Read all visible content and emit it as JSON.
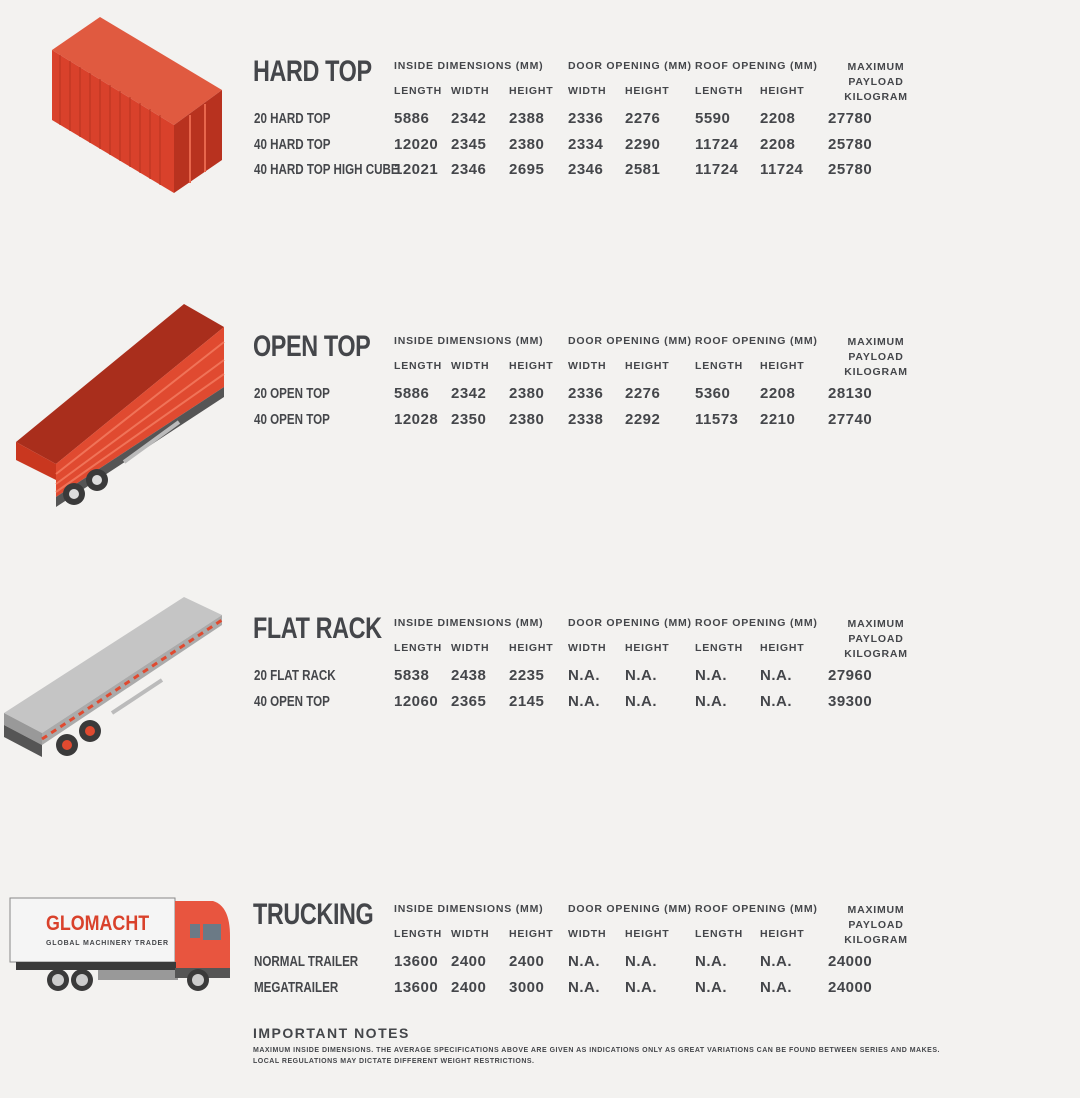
{
  "colors": {
    "text": "#44464a",
    "container_red": "#d9412b",
    "truck_cab": "#e8553f",
    "background": "#f3f2f0"
  },
  "headers": {
    "inside": "INSIDE DIMENSIONS (MM)",
    "door": "DOOR OPENING (MM)",
    "roof": "ROOF OPENING (MM)",
    "payload_1": "MAXIMUM PAYLOAD",
    "payload_2": "KILOGRAM",
    "length": "LENGTH",
    "width": "WIDTH",
    "height": "HEIGHT"
  },
  "sections": [
    {
      "title": "HARD TOP",
      "illustration": "shipping-container",
      "rows": [
        {
          "label": "20 HARD TOP",
          "values": [
            "5886",
            "2342",
            "2388",
            "2336",
            "2276",
            "5590",
            "2208",
            "27780"
          ]
        },
        {
          "label": "40 HARD TOP",
          "values": [
            "12020",
            "2345",
            "2380",
            "2334",
            "2290",
            "11724",
            "2208",
            "25780"
          ]
        },
        {
          "label": "40 HARD TOP HIGH CUBE",
          "values": [
            "12021",
            "2346",
            "2695",
            "2346",
            "2581",
            "11724",
            "11724",
            "25780"
          ]
        }
      ]
    },
    {
      "title": "OPEN TOP",
      "illustration": "open-top-trailer",
      "rows": [
        {
          "label": "20 OPEN TOP",
          "values": [
            "5886",
            "2342",
            "2380",
            "2336",
            "2276",
            "5360",
            "2208",
            "28130"
          ]
        },
        {
          "label": "40 OPEN TOP",
          "values": [
            "12028",
            "2350",
            "2380",
            "2338",
            "2292",
            "11573",
            "2210",
            "27740"
          ]
        }
      ]
    },
    {
      "title": "FLAT RACK",
      "illustration": "flat-rack-trailer",
      "rows": [
        {
          "label": "20 FLAT RACK",
          "values": [
            "5838",
            "2438",
            "2235",
            "N.A.",
            "N.A.",
            "N.A.",
            "N.A.",
            "27960"
          ]
        },
        {
          "label": "40 OPEN TOP",
          "values": [
            "12060",
            "2365",
            "2145",
            "N.A.",
            "N.A.",
            "N.A.",
            "N.A.",
            "39300"
          ]
        }
      ]
    },
    {
      "title": "TRUCKING",
      "illustration": "truck",
      "rows": [
        {
          "label": "NORMAL TRAILER",
          "values": [
            "13600",
            "2400",
            "2400",
            "N.A.",
            "N.A.",
            "N.A.",
            "N.A.",
            "24000"
          ]
        },
        {
          "label": "MEGATRAILER",
          "values": [
            "13600",
            "2400",
            "3000",
            "N.A.",
            "N.A.",
            "N.A.",
            "N.A.",
            "24000"
          ]
        }
      ]
    }
  ],
  "logo": {
    "brand": "GLOMACHT",
    "tagline": "GLOBAL MACHINERY TRADER"
  },
  "notes": {
    "title": "IMPORTANT NOTES",
    "text": "MAXIMUM INSIDE DIMENSIONS. THE AVERAGE SPECIFICATIONS ABOVE ARE GIVEN AS INDICATIONS ONLY AS GREAT VARIATIONS CAN BE FOUND BETWEEN SERIES AND MAKES. LOCAL REGULATIONS MAY DICTATE DIFFERENT WEIGHT RESTRICTIONS."
  }
}
